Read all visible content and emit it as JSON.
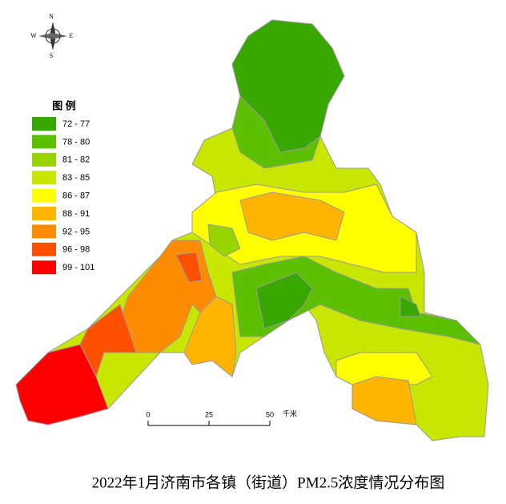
{
  "title": "2022年1月济南市各镇（街道）PM2.5浓度情况分布图",
  "compass": {
    "north": "N",
    "south": "S",
    "east": "E",
    "west": "W"
  },
  "legend": {
    "title": "图  例",
    "items": [
      {
        "label": "72 - 77",
        "color": "#38a800"
      },
      {
        "label": "78 - 80",
        "color": "#5cbf00"
      },
      {
        "label": "81 - 82",
        "color": "#98d400"
      },
      {
        "label": "83 - 85",
        "color": "#c8e600"
      },
      {
        "label": "86 - 87",
        "color": "#ffff00"
      },
      {
        "label": "88 - 91",
        "color": "#ffb400"
      },
      {
        "label": "92 - 95",
        "color": "#ff8c00"
      },
      {
        "label": "96 - 98",
        "color": "#ff5000"
      },
      {
        "label": "99 - 101",
        "color": "#ff0000"
      }
    ]
  },
  "scale_bar": {
    "ticks": [
      0,
      25,
      50
    ],
    "unit": "千米"
  }
}
